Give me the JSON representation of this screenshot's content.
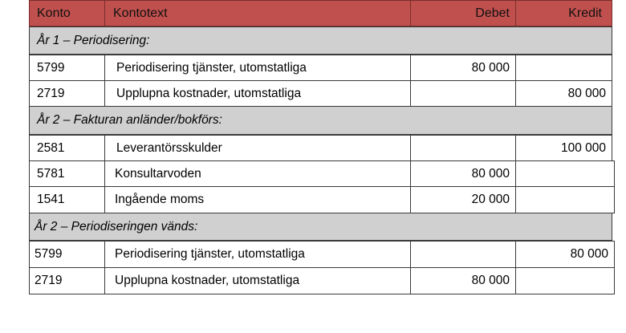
{
  "header": {
    "konto": "Konto",
    "kontotext": "Kontotext",
    "debet": "Debet",
    "kredit": "Kredit"
  },
  "sections": [
    {
      "title": "År 1 – Periodisering:",
      "rows": [
        {
          "konto": "5799",
          "text": "Periodisering tjänster, utomstatliga",
          "debet": "80 000",
          "kredit": ""
        },
        {
          "konto": "2719",
          "text": "Upplupna kostnader, utomstatliga",
          "debet": "",
          "kredit": "80 000"
        }
      ]
    },
    {
      "title": "År 2 – Fakturan anländer/bokförs:",
      "rows": [
        {
          "konto": "2581",
          "text": "Leverantörsskulder",
          "debet": "",
          "kredit": "100 000"
        },
        {
          "konto": "5781",
          "text": "Konsultarvoden",
          "debet": "80 000",
          "kredit": ""
        },
        {
          "konto": "1541",
          "text": "Ingående moms",
          "debet": "20 000",
          "kredit": ""
        }
      ]
    },
    {
      "title": "År 2 – Periodiseringen vänds:",
      "rows": [
        {
          "konto": "5799",
          "text": "Periodisering tjänster, utomstatliga",
          "debet": "",
          "kredit": "80 000"
        },
        {
          "konto": "2719",
          "text": "Upplupna kostnader, utomstatliga",
          "debet": "80 000",
          "kredit": ""
        }
      ]
    }
  ]
}
